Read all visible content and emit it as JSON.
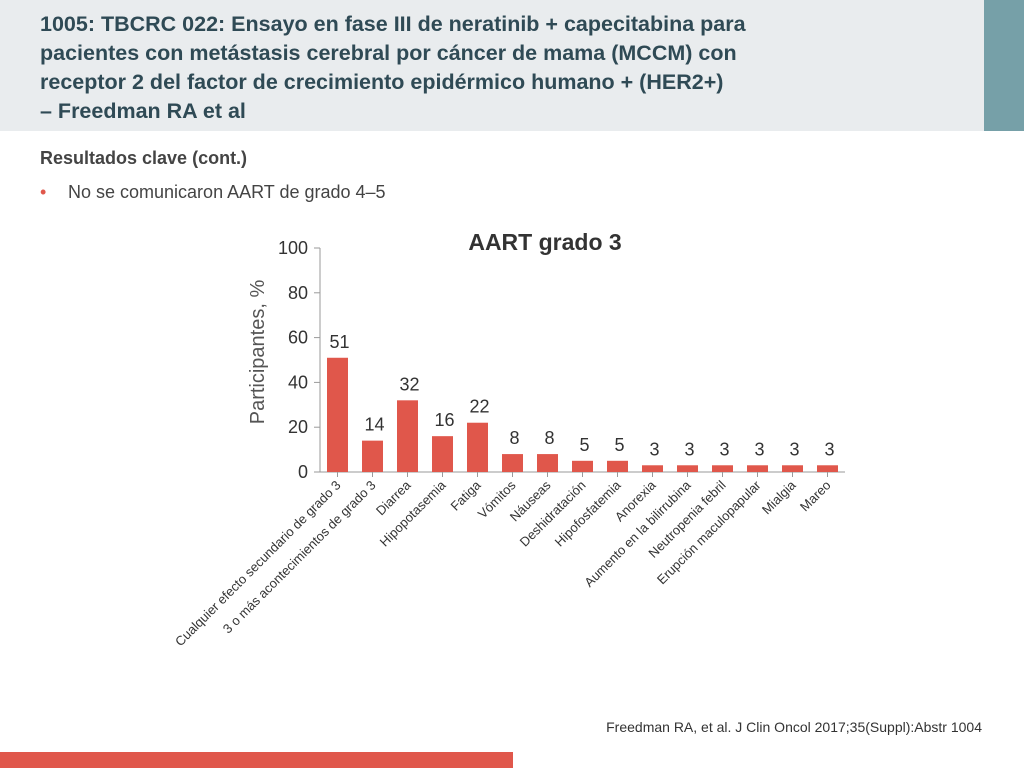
{
  "slide": {
    "title_lines": [
      "1005: TBCRC 022: Ensayo en fase III de neratinib + capecitabina para",
      "pacientes con metástasis cerebral por cáncer de mama (MCCM) con",
      "receptor 2 del factor de crecimiento epidérmico humano + (HER2+)",
      "– Freedman RA et al"
    ],
    "subheading": "Resultados clave (cont.)",
    "bullet": "No se comunicaron AART de grado 4–5",
    "citation": "Freedman RA, et al. J Clin Oncol 2017;35(Suppl):Abstr 1004"
  },
  "colors": {
    "bar": "#e0574b",
    "title": "#2f4a55",
    "header_band": "#e9ecee",
    "header_accent": "#76a0a8",
    "footer_bar": "#e0574b"
  },
  "chart_data": {
    "type": "bar",
    "title": "AART grado 3",
    "xlabel": "",
    "ylabel": "Participantes, %",
    "ylim": [
      0,
      100
    ],
    "yticks": [
      0,
      20,
      40,
      60,
      80,
      100
    ],
    "grid": false,
    "categories": [
      "Cualquier efecto secundario de grado 3",
      "3 o más acontecimientos de grado 3",
      "Diarrea",
      "Hipopotasemia",
      "Fatiga",
      "Vómitos",
      "Náuseas",
      "Deshidratación",
      "Hipofosfatemia",
      "Anorexia",
      "Aumento en la bilirrubina",
      "Neutropenia febril",
      "Erupción maculopapular",
      "Mialgia",
      "Mareo"
    ],
    "values": [
      51,
      14,
      32,
      16,
      22,
      8,
      8,
      5,
      5,
      3,
      3,
      3,
      3,
      3,
      3
    ]
  }
}
